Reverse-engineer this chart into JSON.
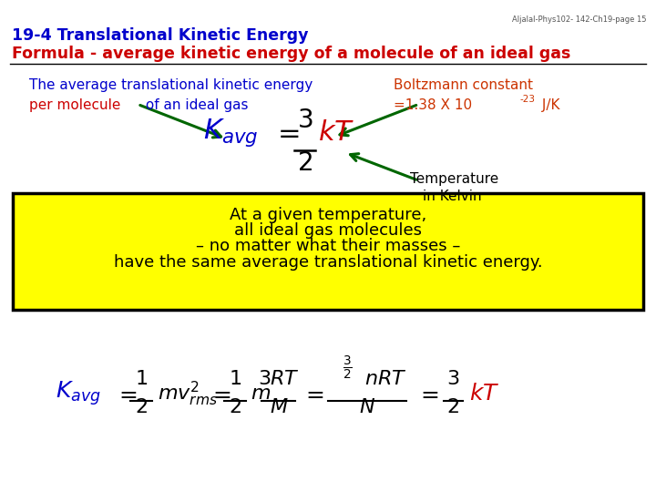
{
  "bg_color": "#ffffff",
  "header_watermark": "Aljalal-Phys102- 142-Ch19-page 15",
  "title_line1": "19-4 Translational Kinetic Energy",
  "title_line2": "Formula - average kinetic energy of a molecule of an ideal gas",
  "title_color": "#0000cc",
  "subtitle_color": "#cc0000",
  "desc_line1": "The average translational kinetic energy",
  "desc_line2_red": "per molecule",
  "desc_line2_blue": " of an ideal gas",
  "boltzmann_line1": "Boltzmann constant",
  "boltzmann_line2": "=1.38 X 10",
  "boltzmann_exp": "-23",
  "boltzmann_line2b": " J/K",
  "boltzmann_color": "#cc3300",
  "temp_line1": "Temperature",
  "temp_line2": "in Kelvin",
  "yellow_box_color": "#ffff00",
  "yellow_text_line1": "At a given temperature,",
  "yellow_text_line2": "all ideal gas molecules",
  "yellow_text_line3": "– no matter what their masses –",
  "yellow_text_line4": "have the same average translational kinetic energy.",
  "arrow_color": "#006600"
}
